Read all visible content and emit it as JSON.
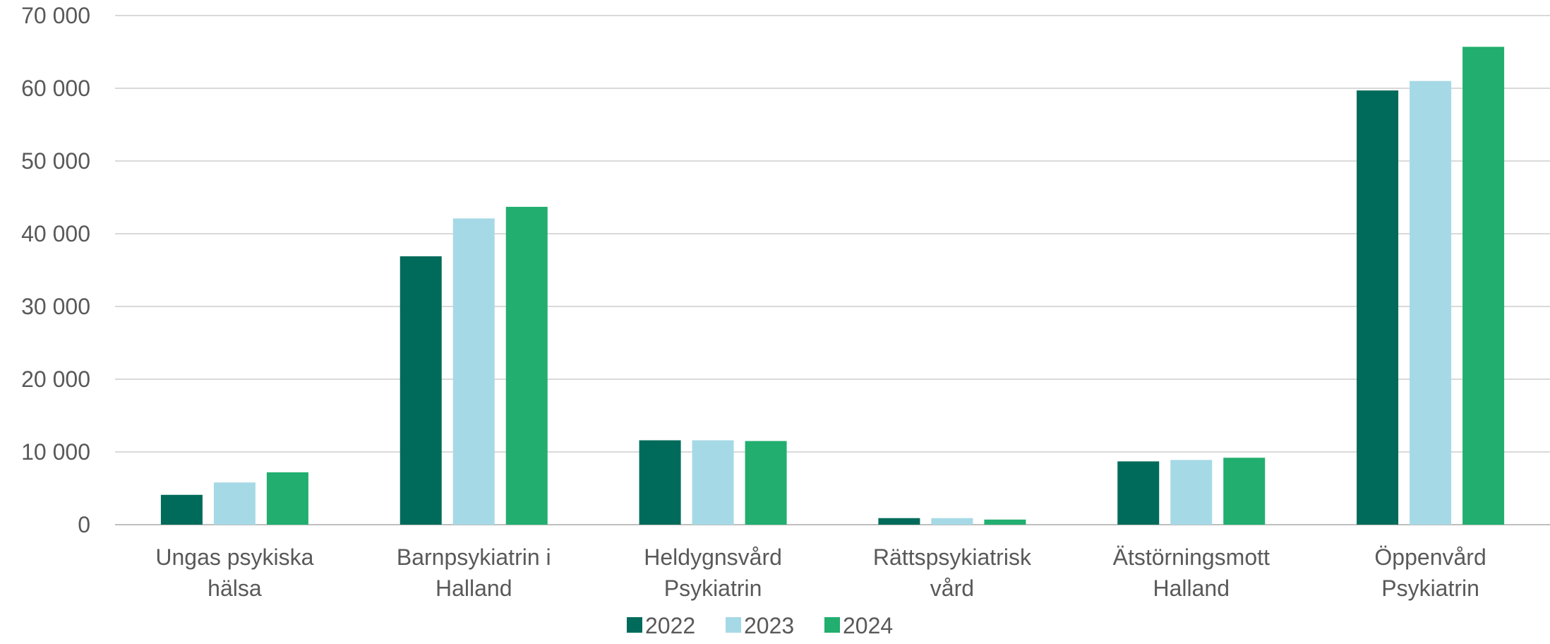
{
  "chart_data": {
    "type": "bar",
    "categories": [
      [
        "Ungas psykiska",
        "hälsa"
      ],
      [
        "Barnpsykiatrin i",
        "Halland"
      ],
      [
        "Heldygnsvård",
        "Psykiatrin"
      ],
      [
        "Rättspsykiatrisk",
        "vård"
      ],
      [
        "Ätstörningsmott",
        "Halland"
      ],
      [
        "Öppenvård",
        "Psykiatrin"
      ]
    ],
    "series": [
      {
        "name": "2022",
        "color": "#006b5a",
        "values": [
          4100,
          36900,
          11600,
          900,
          8700,
          59700
        ]
      },
      {
        "name": "2023",
        "color": "#a6d9e6",
        "values": [
          5800,
          42100,
          11600,
          900,
          8900,
          61000
        ]
      },
      {
        "name": "2024",
        "color": "#21ae6e",
        "values": [
          7200,
          43700,
          11500,
          700,
          9200,
          65700
        ]
      }
    ],
    "ylim": [
      0,
      70000
    ],
    "yticks": [
      "0",
      "10 000",
      "20 000",
      "30 000",
      "40 000",
      "50 000",
      "60 000",
      "70 000"
    ],
    "grid": true,
    "legend_position": "bottom"
  }
}
